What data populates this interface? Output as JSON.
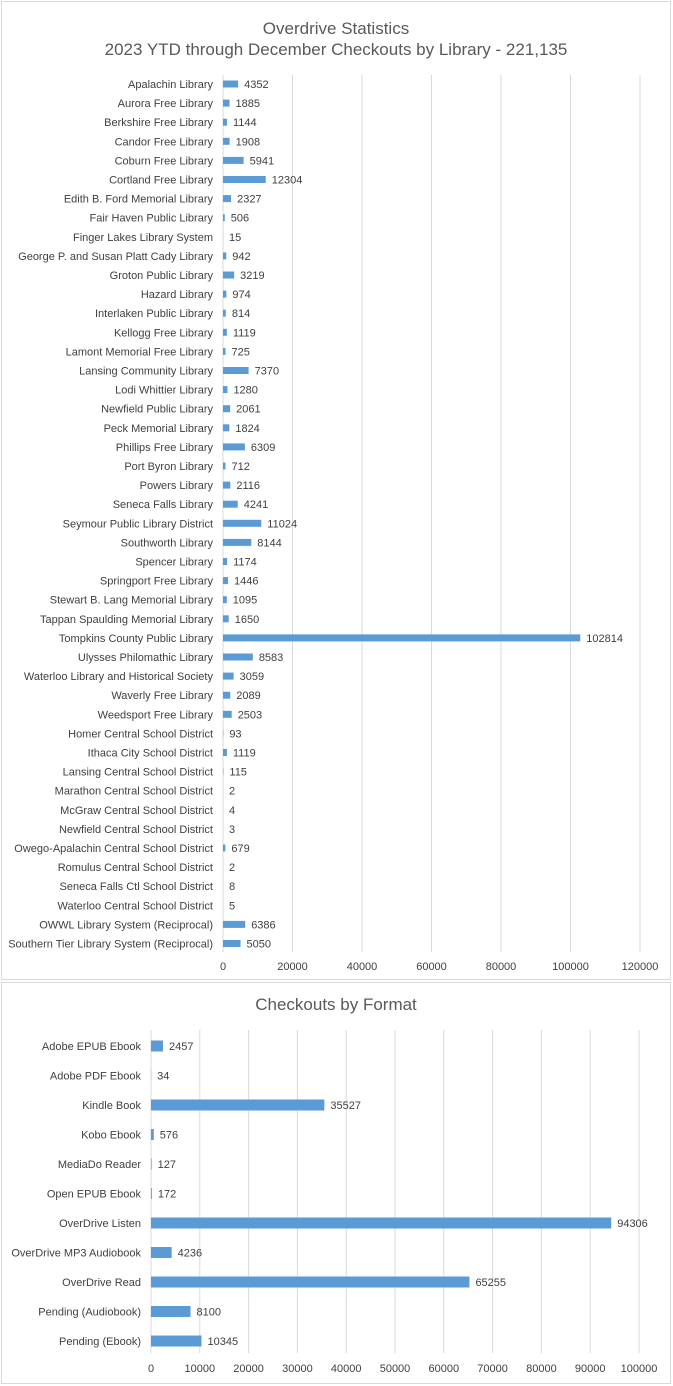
{
  "colors": {
    "bar": "#5b9bd5",
    "grid": "#d9d9d9",
    "text": "#404040",
    "title": "#595959"
  },
  "chart_data": [
    {
      "type": "bar",
      "orientation": "horizontal",
      "title": "Overdrive Statistics",
      "subtitle": "2023 YTD through December Checkouts by Library - 221,135",
      "xlim": [
        0,
        120000
      ],
      "xticks": [
        0,
        20000,
        40000,
        60000,
        80000,
        100000,
        120000
      ],
      "grid": true,
      "categories": [
        "Apalachin Library",
        "Aurora Free Library",
        "Berkshire Free Library",
        "Candor Free Library",
        "Coburn Free Library",
        "Cortland Free Library",
        "Edith B. Ford Memorial Library",
        "Fair Haven Public Library",
        "Finger Lakes Library System",
        "George P. and Susan Platt Cady Library",
        "Groton Public Library",
        "Hazard Library",
        "Interlaken Public Library",
        "Kellogg Free Library",
        "Lamont Memorial Free Library",
        "Lansing Community Library",
        "Lodi Whittier Library",
        "Newfield Public Library",
        "Peck Memorial Library",
        "Phillips Free Library",
        "Port Byron Library",
        "Powers Library",
        "Seneca Falls Library",
        "Seymour Public Library District",
        "Southworth Library",
        "Spencer Library",
        "Springport Free Library",
        "Stewart B. Lang Memorial Library",
        "Tappan Spaulding Memorial Library",
        "Tompkins County Public Library",
        "Ulysses Philomathic Library",
        "Waterloo Library and Historical Society",
        "Waverly Free Library",
        "Weedsport Free Library",
        "Homer Central School District",
        "Ithaca City School District",
        "Lansing Central School District",
        "Marathon Central School District",
        "McGraw Central School District",
        "Newfield Central School District",
        "Owego-Apalachin Central School District",
        "Romulus Central School District",
        "Seneca Falls Ctl School District",
        "Waterloo Central School District",
        "OWWL Library System (Reciprocal)",
        "Southern Tier Library System (Reciprocal)"
      ],
      "values": [
        4352,
        1885,
        1144,
        1908,
        5941,
        12304,
        2327,
        506,
        15,
        942,
        3219,
        974,
        814,
        1119,
        725,
        7370,
        1280,
        2061,
        1824,
        6309,
        712,
        2116,
        4241,
        11024,
        8144,
        1174,
        1446,
        1095,
        1650,
        102814,
        8583,
        3059,
        2089,
        2503,
        93,
        1119,
        115,
        2,
        4,
        3,
        679,
        2,
        8,
        5,
        6386,
        5050
      ]
    },
    {
      "type": "bar",
      "orientation": "horizontal",
      "title": "Checkouts by Format",
      "xlim": [
        0,
        100000
      ],
      "xticks": [
        0,
        10000,
        20000,
        30000,
        40000,
        50000,
        60000,
        70000,
        80000,
        90000,
        100000
      ],
      "grid": true,
      "categories": [
        "Adobe EPUB Ebook",
        "Adobe PDF Ebook",
        "Kindle Book",
        "Kobo Ebook",
        "MediaDo Reader",
        "Open EPUB Ebook",
        "OverDrive Listen",
        "OverDrive MP3 Audiobook",
        "OverDrive Read",
        "Pending (Audiobook)",
        "Pending (Ebook)"
      ],
      "values": [
        2457,
        34,
        35527,
        576,
        127,
        172,
        94306,
        4236,
        65255,
        8100,
        10345
      ]
    }
  ]
}
